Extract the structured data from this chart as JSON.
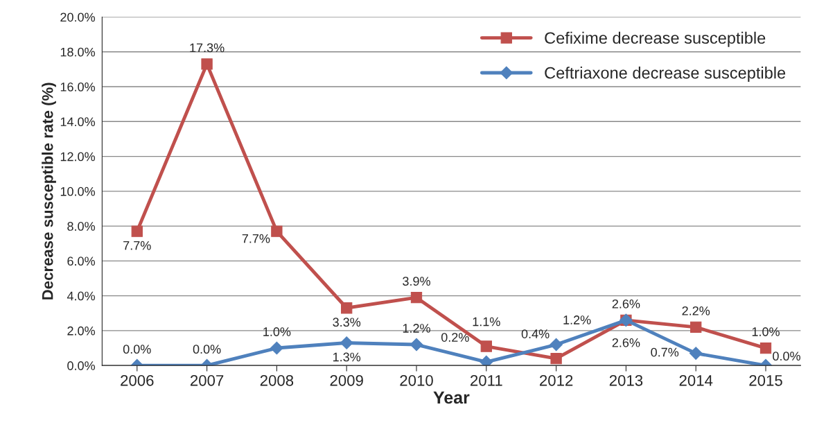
{
  "chart_data": {
    "type": "line",
    "xlabel": "Year",
    "ylabel": "Decrease susceptible rate (%)",
    "categories": [
      "2006",
      "2007",
      "2008",
      "2009",
      "2010",
      "2011",
      "2012",
      "2013",
      "2014",
      "2015"
    ],
    "series": [
      {
        "name": "Cefixime decrease susceptible",
        "color": "#c0504d",
        "marker": "square",
        "values": [
          7.7,
          17.3,
          7.7,
          3.3,
          3.9,
          1.1,
          0.4,
          2.6,
          2.2,
          1.0
        ],
        "value_labels": [
          "7.7%",
          "17.3%",
          "7.7%",
          "3.3%",
          "3.9%",
          "1.1%",
          "0.4%",
          "2.6%",
          "2.2%",
          "1.0%"
        ]
      },
      {
        "name": "Ceftriaxone decrease susceptible",
        "color": "#4f81bd",
        "marker": "diamond",
        "values": [
          0.0,
          0.0,
          1.0,
          1.3,
          1.2,
          0.2,
          1.2,
          2.6,
          0.7,
          0.0
        ],
        "value_labels": [
          "0.0%",
          "0.0%",
          "1.0%",
          "1.3%",
          "1.2%",
          "0.2%",
          "1.2%",
          "2.6%",
          "0.7%",
          "0.0%"
        ]
      }
    ],
    "ylim": [
      0,
      20
    ],
    "yticks": [
      {
        "value": 0,
        "label": "0.0%"
      },
      {
        "value": 2,
        "label": "2.0%"
      },
      {
        "value": 4,
        "label": "4.0%"
      },
      {
        "value": 6,
        "label": "6.0%"
      },
      {
        "value": 8,
        "label": "8.0%"
      },
      {
        "value": 10,
        "label": "10.0%"
      },
      {
        "value": 12,
        "label": "12.0%"
      },
      {
        "value": 14,
        "label": "14.0%"
      },
      {
        "value": 16,
        "label": "16.0%"
      },
      {
        "value": 18,
        "label": "18.0%"
      },
      {
        "value": 20,
        "label": "20.0%"
      }
    ],
    "grid": "y",
    "legend": "top right"
  }
}
